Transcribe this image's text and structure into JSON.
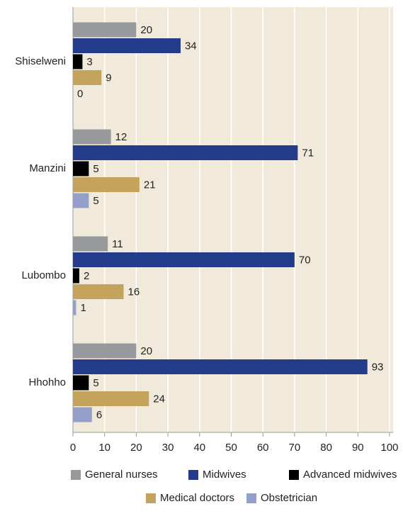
{
  "chart_data": {
    "type": "bar",
    "orientation": "horizontal",
    "categories": [
      "Shiselweni",
      "Manzini",
      "Lubombo",
      "Hhohho"
    ],
    "series": [
      {
        "name": "General  nurses",
        "color": "#98999d",
        "values": [
          20,
          12,
          11,
          20
        ]
      },
      {
        "name": "Midwives",
        "color": "#243a8b",
        "values": [
          34,
          71,
          70,
          93
        ]
      },
      {
        "name": "Advanced midwives",
        "color": "#000000",
        "values": [
          3,
          5,
          2,
          5
        ]
      },
      {
        "name": "Medical doctors",
        "color": "#c4a35c",
        "values": [
          9,
          21,
          16,
          24
        ]
      },
      {
        "name": "Obstetrician",
        "color": "#94a0c9",
        "values": [
          0,
          5,
          1,
          6
        ]
      }
    ],
    "xlim": [
      0,
      100
    ],
    "xticks": [
      0,
      10,
      20,
      30,
      40,
      50,
      60,
      70,
      80,
      90,
      100
    ],
    "grid": true,
    "background": "#f1eadb",
    "legend": "bottom"
  }
}
